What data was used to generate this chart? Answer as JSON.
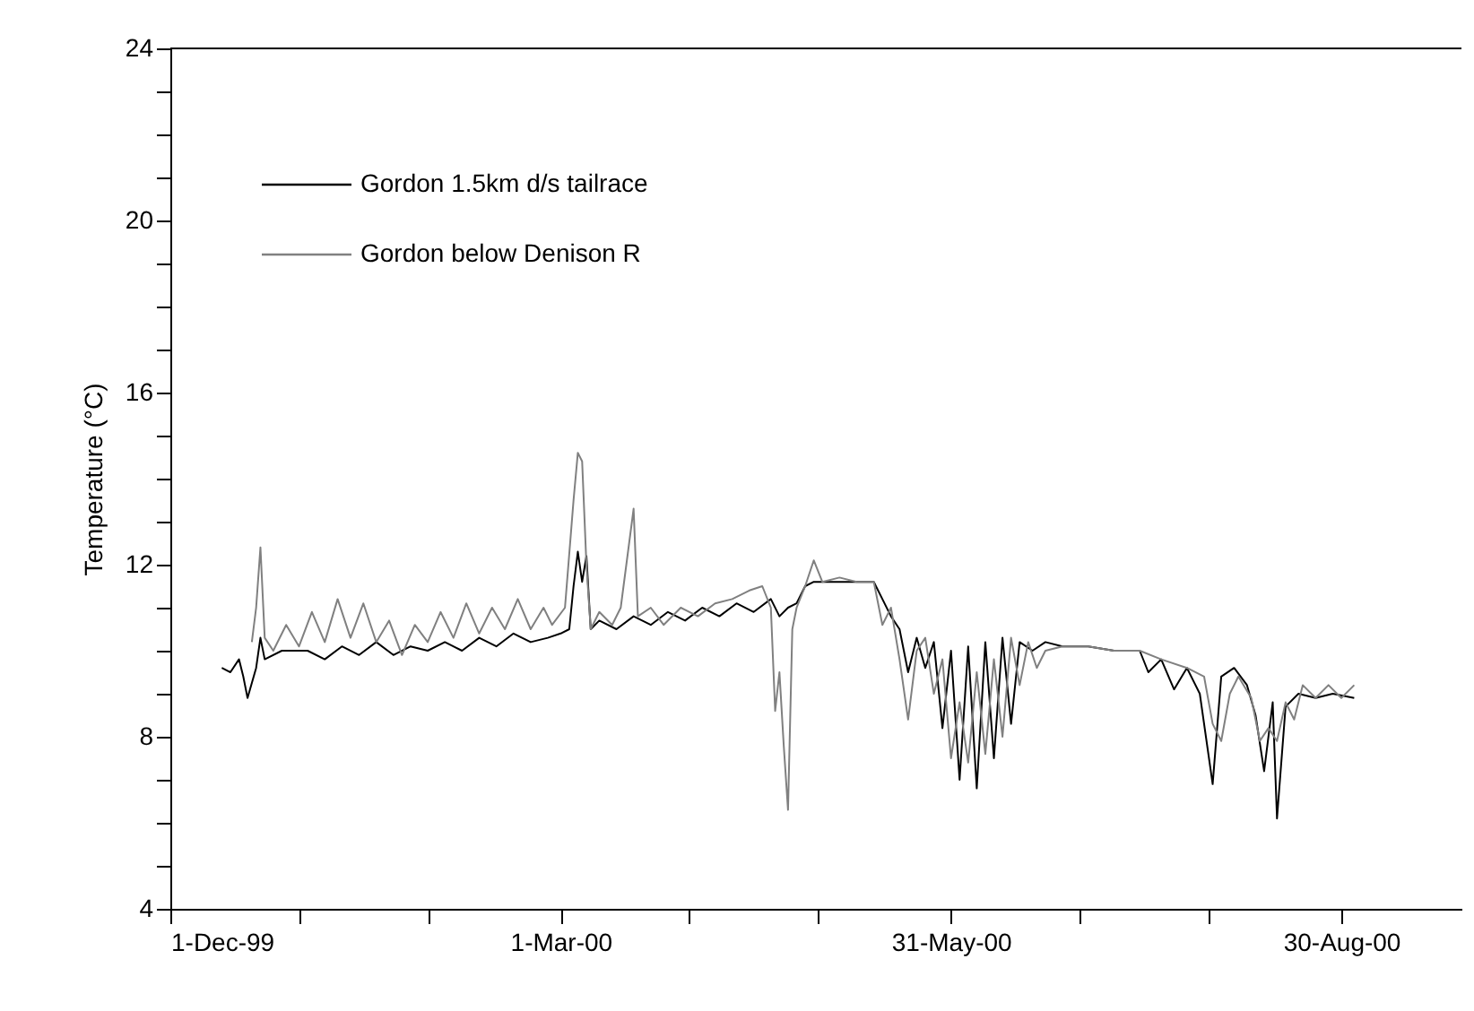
{
  "chart_data": {
    "type": "line",
    "ylabel": "Temperature (°C)",
    "xlim": [
      "1999-12-01",
      "2000-09-27"
    ],
    "xticks": [
      {
        "value": "1999-12-01",
        "label": "1-Dec-99"
      },
      {
        "value": "1999-12-31",
        "label": null
      },
      {
        "value": "2000-01-30",
        "label": null
      },
      {
        "value": "2000-03-01",
        "label": "1-Mar-00"
      },
      {
        "value": "2000-03-31",
        "label": null
      },
      {
        "value": "2000-04-30",
        "label": null
      },
      {
        "value": "2000-05-31",
        "label": "31-May-00"
      },
      {
        "value": "2000-06-30",
        "label": null
      },
      {
        "value": "2000-07-30",
        "label": null
      },
      {
        "value": "2000-08-30",
        "label": "30-Aug-00"
      }
    ],
    "ylim": [
      4,
      24
    ],
    "yticks": [
      {
        "value": 4,
        "label": "4"
      },
      {
        "value": 5,
        "label": null
      },
      {
        "value": 6,
        "label": null
      },
      {
        "value": 7,
        "label": null
      },
      {
        "value": 8,
        "label": "8"
      },
      {
        "value": 9,
        "label": null
      },
      {
        "value": 10,
        "label": null
      },
      {
        "value": 11,
        "label": null
      },
      {
        "value": 12,
        "label": "12"
      },
      {
        "value": 13,
        "label": null
      },
      {
        "value": 14,
        "label": null
      },
      {
        "value": 15,
        "label": null
      },
      {
        "value": 16,
        "label": "16"
      },
      {
        "value": 17,
        "label": null
      },
      {
        "value": 18,
        "label": null
      },
      {
        "value": 19,
        "label": null
      },
      {
        "value": 20,
        "label": "20"
      },
      {
        "value": 21,
        "label": null
      },
      {
        "value": 22,
        "label": null
      },
      {
        "value": 23,
        "label": null
      },
      {
        "value": 24,
        "label": "24"
      }
    ],
    "grid": false,
    "legend": "top left",
    "marker": "none",
    "line_style": "solid",
    "series": [
      {
        "name": "Gordon 1.5km d/s tailrace",
        "color": "#000000",
        "x": [
          "1999-12-13",
          "1999-12-15",
          "1999-12-17",
          "1999-12-18",
          "1999-12-19",
          "1999-12-21",
          "1999-12-22",
          "1999-12-23",
          "1999-12-27",
          "2000-01-02",
          "2000-01-06",
          "2000-01-10",
          "2000-01-14",
          "2000-01-18",
          "2000-01-22",
          "2000-01-26",
          "2000-01-30",
          "2000-02-03",
          "2000-02-07",
          "2000-02-11",
          "2000-02-15",
          "2000-02-19",
          "2000-02-23",
          "2000-02-27",
          "2000-03-01",
          "2000-03-03",
          "2000-03-04",
          "2000-03-05",
          "2000-03-06",
          "2000-03-07",
          "2000-03-08",
          "2000-03-10",
          "2000-03-14",
          "2000-03-18",
          "2000-03-22",
          "2000-03-26",
          "2000-03-30",
          "2000-04-03",
          "2000-04-07",
          "2000-04-11",
          "2000-04-15",
          "2000-04-19",
          "2000-04-21",
          "2000-04-23",
          "2000-04-25",
          "2000-04-27",
          "2000-04-29",
          "2000-05-03",
          "2000-05-09",
          "2000-05-13",
          "2000-05-15",
          "2000-05-17",
          "2000-05-19",
          "2000-05-21",
          "2000-05-23",
          "2000-05-25",
          "2000-05-27",
          "2000-05-29",
          "2000-05-31",
          "2000-06-02",
          "2000-06-04",
          "2000-06-06",
          "2000-06-08",
          "2000-06-10",
          "2000-06-12",
          "2000-06-14",
          "2000-06-16",
          "2000-06-19",
          "2000-06-22",
          "2000-06-26",
          "2000-07-02",
          "2000-07-08",
          "2000-07-14",
          "2000-07-16",
          "2000-07-19",
          "2000-07-22",
          "2000-07-25",
          "2000-07-28",
          "2000-07-31",
          "2000-08-02",
          "2000-08-05",
          "2000-08-08",
          "2000-08-10",
          "2000-08-12",
          "2000-08-14",
          "2000-08-15",
          "2000-08-17",
          "2000-08-20",
          "2000-08-24",
          "2000-08-28",
          "2000-09-02"
        ],
        "values": [
          9.6,
          9.5,
          9.8,
          9.4,
          8.9,
          9.6,
          10.3,
          9.8,
          10.0,
          10.0,
          9.8,
          10.1,
          9.9,
          10.2,
          9.9,
          10.1,
          10.0,
          10.2,
          10.0,
          10.3,
          10.1,
          10.4,
          10.2,
          10.3,
          10.4,
          10.5,
          11.5,
          12.3,
          11.6,
          12.2,
          10.5,
          10.7,
          10.5,
          10.8,
          10.6,
          10.9,
          10.7,
          11.0,
          10.8,
          11.1,
          10.9,
          11.2,
          10.8,
          11.0,
          11.1,
          11.5,
          11.6,
          11.6,
          11.6,
          11.6,
          11.2,
          10.8,
          10.5,
          9.5,
          10.3,
          9.6,
          10.2,
          8.2,
          10.0,
          7.0,
          10.1,
          6.8,
          10.2,
          7.5,
          10.3,
          8.3,
          10.2,
          10.0,
          10.2,
          10.1,
          10.1,
          10.0,
          10.0,
          9.5,
          9.8,
          9.1,
          9.6,
          9.0,
          6.9,
          9.4,
          9.6,
          9.2,
          8.5,
          7.2,
          8.8,
          6.1,
          8.7,
          9.0,
          8.9,
          9.0,
          8.9
        ]
      },
      {
        "name": "Gordon below Denison R",
        "color": "#808080",
        "x": [
          "1999-12-20",
          "1999-12-21",
          "1999-12-22",
          "1999-12-23",
          "1999-12-25",
          "1999-12-28",
          "1999-12-31",
          "2000-01-03",
          "2000-01-06",
          "2000-01-09",
          "2000-01-12",
          "2000-01-15",
          "2000-01-18",
          "2000-01-21",
          "2000-01-24",
          "2000-01-27",
          "2000-01-30",
          "2000-02-02",
          "2000-02-05",
          "2000-02-08",
          "2000-02-11",
          "2000-02-14",
          "2000-02-17",
          "2000-02-20",
          "2000-02-23",
          "2000-02-26",
          "2000-02-28",
          "2000-03-02",
          "2000-03-04",
          "2000-03-05",
          "2000-03-06",
          "2000-03-07",
          "2000-03-08",
          "2000-03-10",
          "2000-03-13",
          "2000-03-15",
          "2000-03-18",
          "2000-03-19",
          "2000-03-22",
          "2000-03-25",
          "2000-03-29",
          "2000-04-02",
          "2000-04-06",
          "2000-04-10",
          "2000-04-14",
          "2000-04-17",
          "2000-04-19",
          "2000-04-20",
          "2000-04-21",
          "2000-04-22",
          "2000-04-23",
          "2000-04-24",
          "2000-04-25",
          "2000-04-27",
          "2000-04-29",
          "2000-05-01",
          "2000-05-05",
          "2000-05-09",
          "2000-05-13",
          "2000-05-15",
          "2000-05-17",
          "2000-05-19",
          "2000-05-21",
          "2000-05-23",
          "2000-05-25",
          "2000-05-27",
          "2000-05-29",
          "2000-05-31",
          "2000-06-02",
          "2000-06-04",
          "2000-06-06",
          "2000-06-08",
          "2000-06-10",
          "2000-06-12",
          "2000-06-14",
          "2000-06-16",
          "2000-06-18",
          "2000-06-20",
          "2000-06-22",
          "2000-06-26",
          "2000-07-02",
          "2000-07-08",
          "2000-07-14",
          "2000-07-19",
          "2000-07-25",
          "2000-07-29",
          "2000-07-31",
          "2000-08-02",
          "2000-08-04",
          "2000-08-06",
          "2000-08-09",
          "2000-08-11",
          "2000-08-13",
          "2000-08-15",
          "2000-08-17",
          "2000-08-19",
          "2000-08-21",
          "2000-08-24",
          "2000-08-27",
          "2000-08-30",
          "2000-09-02"
        ],
        "values": [
          10.2,
          11.0,
          12.4,
          10.3,
          10.0,
          10.6,
          10.1,
          10.9,
          10.2,
          11.2,
          10.3,
          11.1,
          10.2,
          10.7,
          9.9,
          10.6,
          10.2,
          10.9,
          10.3,
          11.1,
          10.4,
          11.0,
          10.5,
          11.2,
          10.5,
          11.0,
          10.6,
          11.0,
          13.5,
          14.6,
          14.4,
          12.0,
          10.5,
          10.9,
          10.6,
          11.0,
          13.3,
          10.8,
          11.0,
          10.6,
          11.0,
          10.8,
          11.1,
          11.2,
          11.4,
          11.5,
          11.0,
          8.6,
          9.5,
          7.8,
          6.3,
          10.5,
          11.0,
          11.5,
          12.1,
          11.6,
          11.7,
          11.6,
          11.6,
          10.6,
          11.0,
          9.8,
          8.4,
          10.0,
          10.3,
          9.0,
          9.8,
          7.5,
          8.8,
          7.4,
          9.5,
          7.6,
          9.8,
          8.0,
          10.3,
          9.2,
          10.2,
          9.6,
          10.0,
          10.1,
          10.1,
          10.0,
          10.0,
          9.8,
          9.6,
          9.4,
          8.3,
          7.9,
          9.0,
          9.4,
          8.9,
          7.9,
          8.2,
          7.9,
          8.8,
          8.4,
          9.2,
          8.9,
          9.2,
          8.9,
          9.2
        ]
      }
    ]
  }
}
